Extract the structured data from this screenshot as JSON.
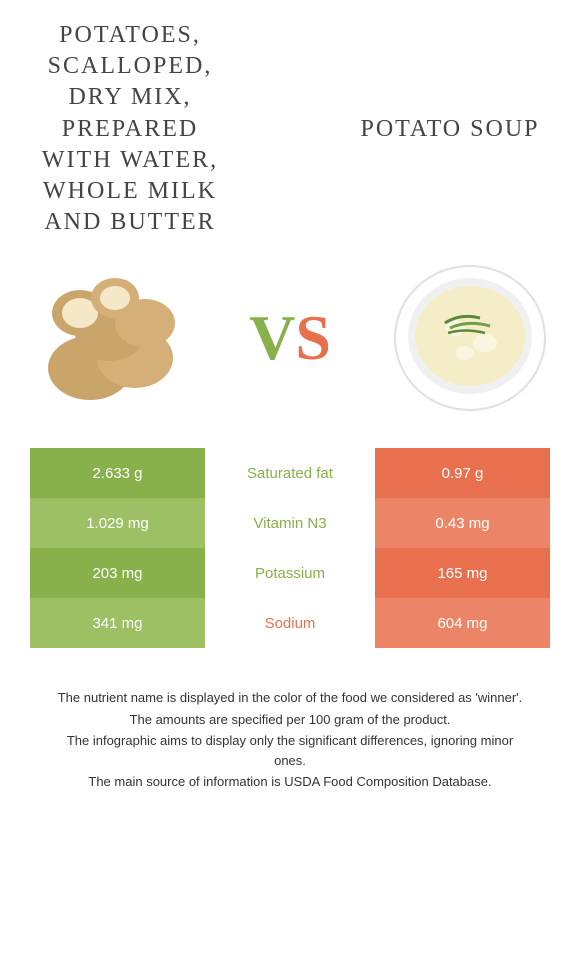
{
  "titles": {
    "left": "POTATOES, SCALLOPED, DRY MIX, PREPARED WITH WATER, WHOLE MILK AND BUTTER",
    "right": "POTATO SOUP"
  },
  "vs": {
    "v": "V",
    "s": "S"
  },
  "colors": {
    "green_dark": "#88b04b",
    "green_light": "#9cc063",
    "orange_dark": "#e8704f",
    "orange_light": "#ec8567",
    "text_green": "#88b04b",
    "text_orange": "#e8704f"
  },
  "rows": [
    {
      "left": "2.633 g",
      "mid": "Saturated fat",
      "right": "0.97 g",
      "winner": "left"
    },
    {
      "left": "1.029 mg",
      "mid": "Vitamin N3",
      "right": "0.43 mg",
      "winner": "left"
    },
    {
      "left": "203 mg",
      "mid": "Potassium",
      "right": "165 mg",
      "winner": "left"
    },
    {
      "left": "341 mg",
      "mid": "Sodium",
      "right": "604 mg",
      "winner": "right"
    }
  ],
  "footer": [
    "The nutrient name is displayed in the color of the food we considered as 'winner'.",
    "The amounts are specified per 100 gram of the product.",
    "The infographic aims to display only the significant differences, ignoring minor ones.",
    "The main source of information is USDA Food Composition Database."
  ]
}
